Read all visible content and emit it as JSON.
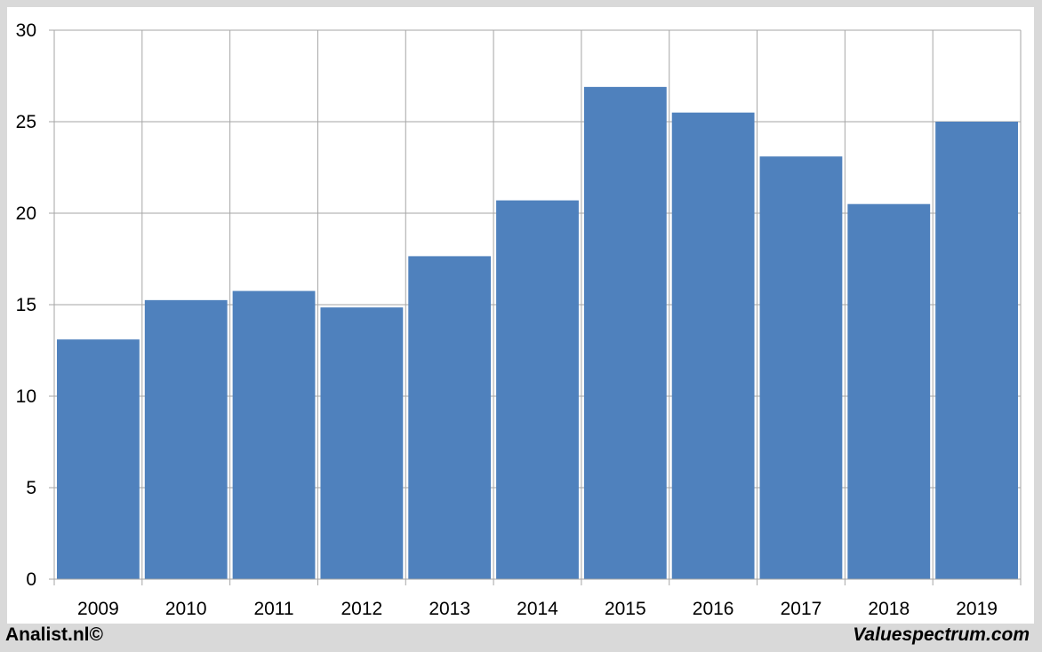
{
  "footer": {
    "left_text": "Analist.nl©",
    "right_text": "Valuespectrum.com"
  },
  "colors": {
    "bar": "#4f81bd",
    "grid": "#a6a6a6",
    "background": "#ffffff",
    "frame": "#d9d9d9"
  },
  "chart_data": {
    "type": "bar",
    "title": "",
    "xlabel": "",
    "ylabel": "",
    "categories": [
      "2009",
      "2010",
      "2011",
      "2012",
      "2013",
      "2014",
      "2015",
      "2016",
      "2017",
      "2018",
      "2019"
    ],
    "values": [
      13.1,
      15.25,
      15.75,
      14.85,
      17.65,
      20.7,
      26.9,
      25.5,
      23.1,
      20.5,
      25.0
    ],
    "ylim": [
      0,
      30
    ],
    "yticks": [
      0,
      5,
      10,
      15,
      20,
      25,
      30
    ],
    "grid": true,
    "legend": "none"
  }
}
